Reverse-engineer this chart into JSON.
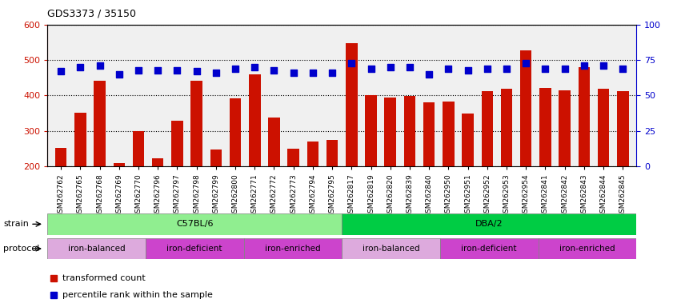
{
  "title": "GDS3373 / 35150",
  "samples": [
    "GSM262762",
    "GSM262765",
    "GSM262768",
    "GSM262769",
    "GSM262770",
    "GSM262796",
    "GSM262797",
    "GSM262798",
    "GSM262799",
    "GSM262800",
    "GSM262771",
    "GSM262772",
    "GSM262773",
    "GSM262794",
    "GSM262795",
    "GSM262817",
    "GSM262819",
    "GSM262820",
    "GSM262839",
    "GSM262840",
    "GSM262950",
    "GSM262951",
    "GSM262952",
    "GSM262953",
    "GSM262954",
    "GSM262841",
    "GSM262842",
    "GSM262843",
    "GSM262844",
    "GSM262845"
  ],
  "bar_values": [
    252,
    352,
    441,
    210,
    300,
    224,
    330,
    441,
    247,
    393,
    459,
    337,
    251,
    270,
    275,
    548,
    401,
    395,
    399,
    380,
    382,
    349,
    412,
    420,
    527,
    421,
    415,
    480,
    418,
    412
  ],
  "percentile_values": [
    67,
    70,
    71,
    65,
    68,
    68,
    68,
    67,
    66,
    69,
    70,
    68,
    66,
    66,
    66,
    73,
    69,
    70,
    70,
    65,
    69,
    68,
    69,
    69,
    73,
    69,
    69,
    71,
    71,
    69
  ],
  "bar_color": "#CC1100",
  "dot_color": "#0000CC",
  "ylim_left": [
    200,
    600
  ],
  "ylim_right": [
    0,
    100
  ],
  "yticks_left": [
    200,
    300,
    400,
    500,
    600
  ],
  "yticks_right": [
    0,
    25,
    50,
    75,
    100
  ],
  "strain_groups": [
    {
      "label": "C57BL/6",
      "start": 0,
      "end": 15,
      "color": "#90EE90"
    },
    {
      "label": "DBA/2",
      "start": 15,
      "end": 30,
      "color": "#00CC44"
    }
  ],
  "protocol_groups": [
    {
      "label": "iron-balanced",
      "start": 0,
      "end": 5,
      "color": "#DDAADD"
    },
    {
      "label": "iron-deficient",
      "start": 5,
      "end": 10,
      "color": "#DD44DD"
    },
    {
      "label": "iron-enriched",
      "start": 10,
      "end": 15,
      "color": "#DD44DD"
    },
    {
      "label": "iron-balanced",
      "start": 15,
      "end": 20,
      "color": "#DDAADD"
    },
    {
      "label": "iron-deficient",
      "start": 20,
      "end": 25,
      "color": "#DD44DD"
    },
    {
      "label": "iron-enriched",
      "start": 25,
      "end": 30,
      "color": "#DD44DD"
    }
  ],
  "legend_items": [
    {
      "label": "transformed count",
      "color": "#CC1100",
      "marker": "s"
    },
    {
      "label": "percentile rank within the sample",
      "color": "#0000CC",
      "marker": "s"
    }
  ],
  "grid_color": "black",
  "background_color": "#F0F0F0",
  "bar_bottom": 200
}
